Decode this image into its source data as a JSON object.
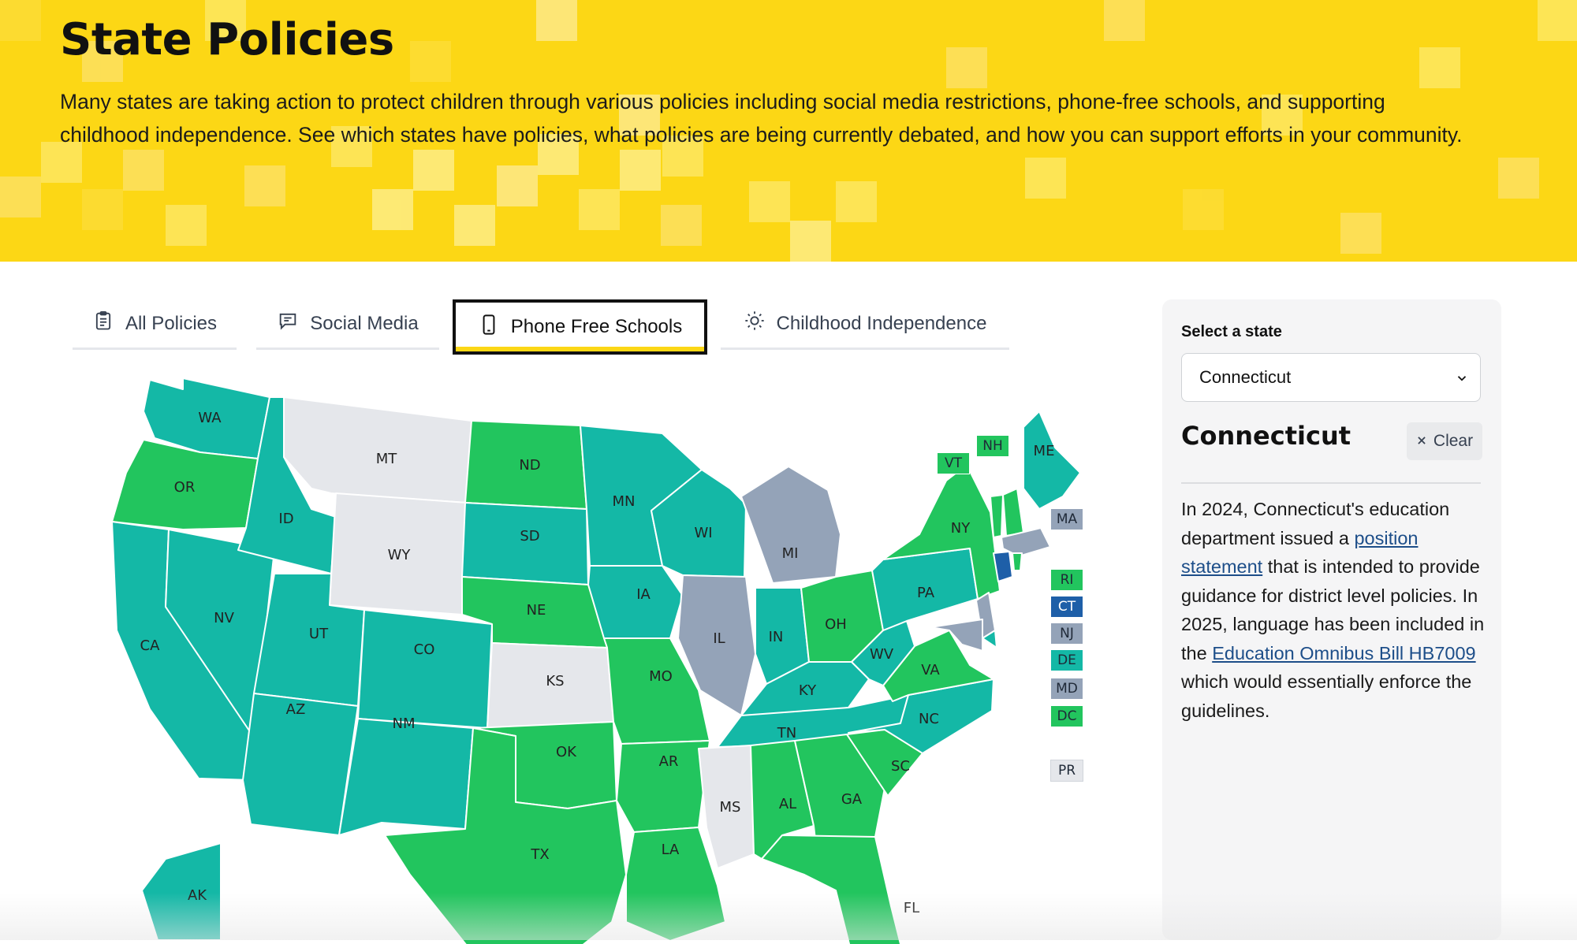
{
  "hero": {
    "title": "State Policies",
    "description": "Many states are taking action to protect children through various policies including social media restrictions, phone-free schools, and supporting childhood independence. See which states have policies, what policies are being currently debated, and how you can support efforts in your community."
  },
  "tabs": [
    {
      "label": "All Policies",
      "icon": "clipboard-icon",
      "active": false
    },
    {
      "label": "Social Media",
      "icon": "chat-bubble-icon",
      "active": false
    },
    {
      "label": "Phone Free Schools",
      "icon": "phone-icon",
      "active": true
    },
    {
      "label": "Childhood Independence",
      "icon": "sun-icon",
      "active": false
    }
  ],
  "colors": {
    "hero_yellow": "#fcd715",
    "teal": "#14b8a6",
    "green": "#22c55e",
    "gray_blue": "#94a3b8",
    "light_gray": "#e5e7eb",
    "selected": "#1e5fa8"
  },
  "map": {
    "states": {
      "WA": "teal",
      "OR": "green",
      "CA": "teal",
      "NV": "teal",
      "ID": "teal",
      "MT": "light_gray",
      "WY": "light_gray",
      "UT": "teal",
      "AZ": "teal",
      "CO": "teal",
      "NM": "teal",
      "ND": "green",
      "SD": "teal",
      "NE": "green",
      "KS": "light_gray",
      "OK": "green",
      "TX": "green",
      "MN": "teal",
      "IA": "teal",
      "MO": "green",
      "AR": "green",
      "LA": "green",
      "WI": "teal",
      "IL": "gray_blue",
      "MI": "gray_blue",
      "IN": "teal",
      "OH": "green",
      "KY": "teal",
      "TN": "teal",
      "MS": "light_gray",
      "AL": "green",
      "GA": "green",
      "FL": "green",
      "SC": "green",
      "NC": "teal",
      "VA": "green",
      "WV": "teal",
      "PA": "teal",
      "NY": "green",
      "ME": "teal",
      "AK": "teal"
    },
    "small_states": [
      {
        "code": "VT",
        "color": "green"
      },
      {
        "code": "NH",
        "color": "green"
      },
      {
        "code": "MA",
        "color": "gray_blue"
      },
      {
        "code": "RI",
        "color": "green"
      },
      {
        "code": "CT",
        "color": "selected"
      },
      {
        "code": "NJ",
        "color": "gray_blue"
      },
      {
        "code": "DE",
        "color": "teal"
      },
      {
        "code": "MD",
        "color": "gray_blue"
      },
      {
        "code": "DC",
        "color": "green"
      },
      {
        "code": "PR",
        "color": "light_gray"
      }
    ]
  },
  "panel": {
    "select_label": "Select a state",
    "selected_state": "Connecticut",
    "state_heading": "Connecticut",
    "clear_label": "Clear",
    "desc_part1": "In 2024, Connecticut's education department issued a ",
    "link1": "position statement",
    "desc_part2": " that is intended to provide guidance for district level policies. In 2025, language has been included in the ",
    "link2": "Education Omnibus Bill HB7009",
    "desc_part3": " which would essentially enforce the guidelines."
  }
}
